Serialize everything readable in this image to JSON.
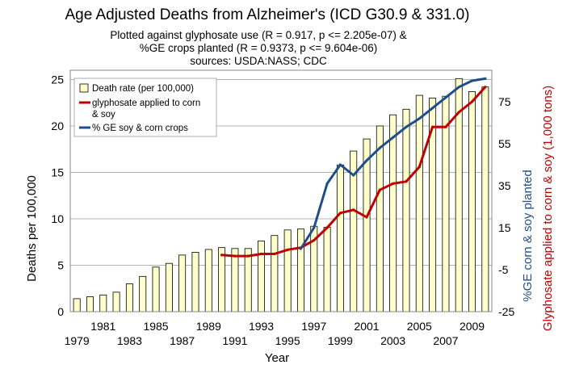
{
  "chart_data": {
    "type": "bar",
    "title": "Age Adjusted Deaths from Alzheimer's (ICD G30.9 & 331.0)",
    "subtitle": [
      "Plotted against glyphosate use (R = 0.917, p <= 2.205e-07) &",
      "%GE crops planted (R = 0.9373, p <= 9.604e-06)",
      "sources: USDA:NASS; CDC"
    ],
    "xlabel": "Year",
    "ylabel": "Deaths per 100,000",
    "ylabel_right_1": "%GE corn & soy planted",
    "ylabel_right_2": "Glyphosate applied to corn & soy (1,000 tons)",
    "ylim": [
      0,
      26
    ],
    "y_ticks": [
      "0",
      "5",
      "10",
      "15",
      "20",
      "25"
    ],
    "right_ylim": [
      -25,
      90
    ],
    "right_ticks": [
      "-25",
      "-5",
      "15",
      "35",
      "55",
      "75"
    ],
    "x_ticks_odd_low": [
      "1979",
      "1983",
      "1987",
      "1991",
      "1995",
      "1999",
      "2003",
      "2007"
    ],
    "x_ticks_odd_high": [
      "1981",
      "1985",
      "1989",
      "1993",
      "1997",
      "2001",
      "2005",
      "2009"
    ],
    "legend": {
      "placement": "top-left",
      "entries": [
        {
          "label_lines": [
            "Death rate (per 100,000)"
          ],
          "kind": "bar",
          "color": "#ffffcc"
        },
        {
          "label_lines": [
            "glyphosate applied to corn",
            "& soy"
          ],
          "kind": "line",
          "color": "#c00000"
        },
        {
          "label_lines": [
            "% GE soy & corn crops"
          ],
          "kind": "line",
          "color": "#1f4e8c"
        }
      ]
    },
    "categories": [
      "1979",
      "1980",
      "1981",
      "1982",
      "1983",
      "1984",
      "1985",
      "1986",
      "1987",
      "1988",
      "1989",
      "1990",
      "1991",
      "1992",
      "1993",
      "1994",
      "1995",
      "1996",
      "1997",
      "1998",
      "1999",
      "2000",
      "2001",
      "2002",
      "2003",
      "2004",
      "2005",
      "2006",
      "2007",
      "2008",
      "2009",
      "2010"
    ],
    "series": [
      {
        "name": "Death rate (per 100,000)",
        "type": "bar",
        "axis": "left",
        "color": "#ffffcc",
        "values": [
          1.4,
          1.6,
          1.8,
          2.1,
          3.0,
          3.8,
          4.8,
          5.2,
          6.1,
          6.4,
          6.7,
          6.9,
          6.8,
          6.8,
          7.6,
          8.2,
          8.8,
          8.9,
          9.2,
          9.1,
          15.8,
          17.3,
          18.6,
          20.0,
          21.2,
          21.8,
          23.3,
          23.0,
          23.2,
          25.1,
          23.7,
          24.2
        ]
      },
      {
        "name": "glyphosate applied to corn & soy",
        "type": "line",
        "axis": "right",
        "color": "#c00000",
        "x": [
          1990,
          1991,
          1992,
          1993,
          1994,
          1995,
          1996,
          1997,
          1998,
          1999,
          2000,
          2001,
          2002,
          2003,
          2004,
          2005,
          2006,
          2007,
          2008,
          2009,
          2010
        ],
        "values": [
          2,
          1.5,
          1.5,
          2.5,
          2.5,
          4.5,
          5.5,
          9,
          15,
          22,
          23.5,
          20,
          33,
          36,
          37,
          44,
          63,
          63,
          70,
          75,
          82
        ]
      },
      {
        "name": "% GE soy & corn crops",
        "type": "line",
        "axis": "right",
        "color": "#1f4e8c",
        "x": [
          1996,
          1997,
          1998,
          1999,
          2000,
          2001,
          2002,
          2003,
          2004,
          2005,
          2006,
          2007,
          2008,
          2009,
          2010
        ],
        "values": [
          5,
          15,
          36,
          45,
          40,
          47,
          53,
          58,
          63,
          67,
          72,
          77,
          82,
          85,
          86
        ]
      }
    ],
    "grid": "horizontal"
  }
}
